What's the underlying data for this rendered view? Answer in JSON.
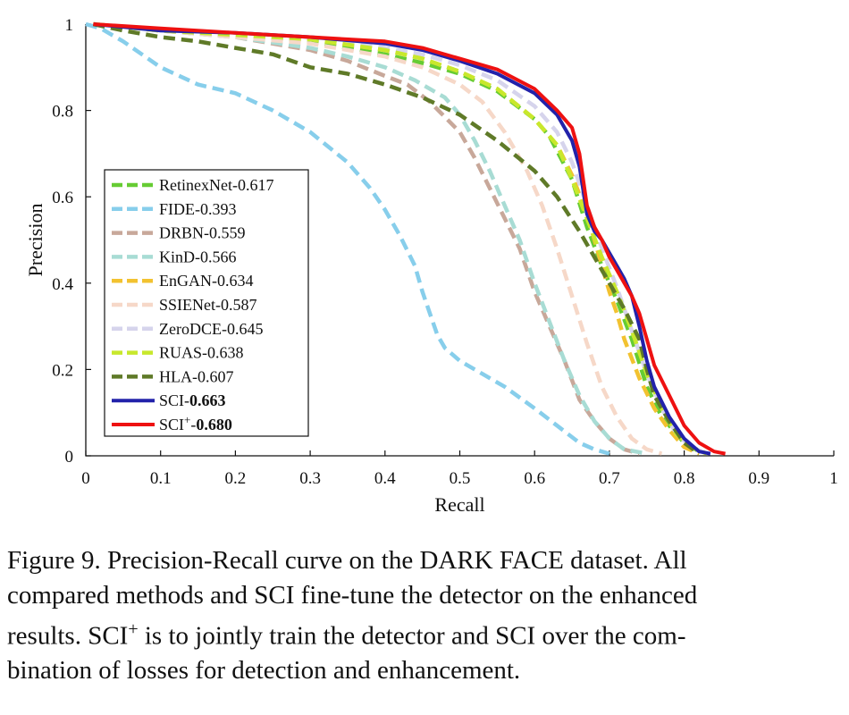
{
  "chart_data": {
    "type": "line",
    "title": "",
    "xlabel": "Recall",
    "ylabel": "Precision",
    "xlim": [
      0,
      1
    ],
    "ylim": [
      0,
      1
    ],
    "x_ticks": [
      0,
      0.1,
      0.2,
      0.3,
      0.4,
      0.5,
      0.6,
      0.7,
      0.8,
      0.9,
      1
    ],
    "x_tick_labels": [
      "0",
      "0.1",
      "0.2",
      "0.3",
      "0.4",
      "0.5",
      "0.6",
      "0.7",
      "0.8",
      "0.9",
      "1"
    ],
    "y_ticks": [
      0,
      0.2,
      0.4,
      0.6,
      0.8,
      1
    ],
    "y_tick_labels": [
      "0",
      "0.2",
      "0.4",
      "0.6",
      "0.8",
      "1"
    ],
    "grid": false,
    "legend_position": "center-left",
    "series": [
      {
        "name": "RetinexNet",
        "score": "0.617",
        "color": "#66cc33",
        "style": "dashed",
        "x": [
          0.01,
          0.1,
          0.2,
          0.3,
          0.4,
          0.45,
          0.5,
          0.55,
          0.6,
          0.62,
          0.65,
          0.67,
          0.69,
          0.71,
          0.73,
          0.75,
          0.77,
          0.8,
          0.82
        ],
        "y": [
          1.0,
          0.985,
          0.975,
          0.96,
          0.93,
          0.91,
          0.885,
          0.845,
          0.78,
          0.74,
          0.64,
          0.53,
          0.44,
          0.36,
          0.27,
          0.16,
          0.09,
          0.03,
          0.01
        ]
      },
      {
        "name": "FIDE",
        "score": "0.393",
        "color": "#87ceeb",
        "style": "dashed",
        "x": [
          0.0,
          0.02,
          0.05,
          0.1,
          0.15,
          0.2,
          0.25,
          0.3,
          0.35,
          0.38,
          0.4,
          0.42,
          0.44,
          0.45,
          0.46,
          0.47,
          0.48,
          0.5,
          0.53,
          0.56,
          0.6,
          0.63,
          0.66,
          0.68,
          0.7
        ],
        "y": [
          1.0,
          0.99,
          0.96,
          0.9,
          0.86,
          0.84,
          0.8,
          0.75,
          0.68,
          0.62,
          0.57,
          0.51,
          0.44,
          0.38,
          0.33,
          0.28,
          0.25,
          0.22,
          0.19,
          0.16,
          0.11,
          0.07,
          0.03,
          0.015,
          0.005
        ]
      },
      {
        "name": "DRBN",
        "score": "0.559",
        "color": "#c8a89a",
        "style": "dashed",
        "x": [
          0.01,
          0.1,
          0.2,
          0.3,
          0.35,
          0.4,
          0.43,
          0.46,
          0.5,
          0.52,
          0.54,
          0.56,
          0.58,
          0.6,
          0.62,
          0.64,
          0.66,
          0.68,
          0.7,
          0.72,
          0.74
        ],
        "y": [
          1.0,
          0.985,
          0.97,
          0.94,
          0.915,
          0.88,
          0.86,
          0.82,
          0.75,
          0.69,
          0.62,
          0.55,
          0.48,
          0.38,
          0.3,
          0.22,
          0.13,
          0.08,
          0.04,
          0.015,
          0.005
        ]
      },
      {
        "name": "KinD",
        "score": "0.566",
        "color": "#a8dcd4",
        "style": "dashed",
        "x": [
          0.01,
          0.1,
          0.2,
          0.3,
          0.35,
          0.4,
          0.44,
          0.48,
          0.5,
          0.52,
          0.54,
          0.56,
          0.58,
          0.6,
          0.62,
          0.64,
          0.66,
          0.68,
          0.7,
          0.72,
          0.75
        ],
        "y": [
          1.0,
          0.985,
          0.97,
          0.945,
          0.925,
          0.9,
          0.87,
          0.83,
          0.79,
          0.73,
          0.66,
          0.58,
          0.5,
          0.4,
          0.31,
          0.22,
          0.14,
          0.08,
          0.04,
          0.015,
          0.005
        ]
      },
      {
        "name": "EnGAN",
        "score": "0.634",
        "color": "#f2c230",
        "style": "dashed",
        "x": [
          0.01,
          0.1,
          0.2,
          0.3,
          0.4,
          0.45,
          0.5,
          0.55,
          0.6,
          0.63,
          0.65,
          0.67,
          0.68,
          0.69,
          0.7,
          0.71,
          0.72,
          0.74,
          0.76,
          0.78,
          0.8,
          0.82
        ],
        "y": [
          1.0,
          0.985,
          0.975,
          0.965,
          0.94,
          0.92,
          0.89,
          0.85,
          0.78,
          0.72,
          0.65,
          0.56,
          0.5,
          0.44,
          0.38,
          0.33,
          0.27,
          0.18,
          0.11,
          0.06,
          0.02,
          0.005
        ]
      },
      {
        "name": "SSIENet",
        "score": "0.587",
        "color": "#f6d8c8",
        "style": "dashed",
        "x": [
          0.01,
          0.1,
          0.2,
          0.3,
          0.4,
          0.45,
          0.5,
          0.53,
          0.56,
          0.59,
          0.61,
          0.63,
          0.65,
          0.67,
          0.69,
          0.71,
          0.73,
          0.75,
          0.77
        ],
        "y": [
          1.0,
          0.985,
          0.97,
          0.955,
          0.925,
          0.9,
          0.86,
          0.82,
          0.75,
          0.66,
          0.58,
          0.48,
          0.37,
          0.26,
          0.16,
          0.09,
          0.04,
          0.015,
          0.005
        ]
      },
      {
        "name": "ZeroDCE",
        "score": "0.645",
        "color": "#d6d4ec",
        "style": "dashed",
        "x": [
          0.01,
          0.1,
          0.2,
          0.3,
          0.4,
          0.45,
          0.5,
          0.55,
          0.6,
          0.63,
          0.65,
          0.67,
          0.69,
          0.71,
          0.73,
          0.75,
          0.77,
          0.79,
          0.81,
          0.83
        ],
        "y": [
          1.0,
          0.985,
          0.975,
          0.965,
          0.945,
          0.93,
          0.905,
          0.87,
          0.81,
          0.75,
          0.68,
          0.58,
          0.48,
          0.39,
          0.29,
          0.19,
          0.11,
          0.05,
          0.02,
          0.005
        ]
      },
      {
        "name": "RUAS",
        "score": "0.638",
        "color": "#c8e82c",
        "style": "dashed",
        "x": [
          0.01,
          0.1,
          0.2,
          0.3,
          0.4,
          0.45,
          0.5,
          0.55,
          0.6,
          0.63,
          0.65,
          0.67,
          0.69,
          0.71,
          0.73,
          0.75,
          0.77,
          0.79,
          0.81,
          0.83
        ],
        "y": [
          1.0,
          0.985,
          0.975,
          0.965,
          0.94,
          0.92,
          0.89,
          0.85,
          0.78,
          0.72,
          0.64,
          0.55,
          0.46,
          0.38,
          0.29,
          0.19,
          0.11,
          0.05,
          0.02,
          0.005
        ]
      },
      {
        "name": "HLA",
        "score": "0.607",
        "color": "#5f7a28",
        "style": "dashed",
        "x": [
          0.01,
          0.05,
          0.1,
          0.15,
          0.2,
          0.25,
          0.3,
          0.35,
          0.4,
          0.45,
          0.5,
          0.55,
          0.6,
          0.63,
          0.66,
          0.68,
          0.7,
          0.72,
          0.74,
          0.75,
          0.76,
          0.78,
          0.8,
          0.82
        ],
        "y": [
          1.0,
          0.985,
          0.97,
          0.96,
          0.945,
          0.93,
          0.9,
          0.885,
          0.86,
          0.83,
          0.79,
          0.73,
          0.66,
          0.6,
          0.52,
          0.46,
          0.4,
          0.34,
          0.27,
          0.2,
          0.14,
          0.08,
          0.03,
          0.005
        ]
      },
      {
        "name": "SCI",
        "score": "0.663",
        "color": "#2222aa",
        "style": "solid",
        "bold_score": true,
        "x": [
          0.01,
          0.1,
          0.2,
          0.3,
          0.4,
          0.45,
          0.5,
          0.55,
          0.6,
          0.63,
          0.65,
          0.66,
          0.67,
          0.68,
          0.69,
          0.7,
          0.71,
          0.72,
          0.73,
          0.74,
          0.75,
          0.76,
          0.78,
          0.8,
          0.82,
          0.835
        ],
        "y": [
          1.0,
          0.985,
          0.98,
          0.97,
          0.955,
          0.94,
          0.915,
          0.885,
          0.84,
          0.79,
          0.73,
          0.67,
          0.56,
          0.52,
          0.5,
          0.47,
          0.44,
          0.41,
          0.37,
          0.3,
          0.22,
          0.16,
          0.09,
          0.04,
          0.01,
          0.005
        ]
      },
      {
        "name": "SCI+",
        "score": "0.680",
        "color": "#ee1111",
        "style": "solid",
        "bold_score": true,
        "superscript": "+",
        "x": [
          0.01,
          0.1,
          0.2,
          0.3,
          0.4,
          0.45,
          0.5,
          0.55,
          0.6,
          0.63,
          0.65,
          0.66,
          0.67,
          0.68,
          0.69,
          0.7,
          0.71,
          0.72,
          0.73,
          0.74,
          0.75,
          0.76,
          0.78,
          0.8,
          0.82,
          0.84,
          0.855
        ],
        "y": [
          1.0,
          0.99,
          0.98,
          0.97,
          0.96,
          0.945,
          0.92,
          0.895,
          0.85,
          0.8,
          0.76,
          0.7,
          0.58,
          0.53,
          0.5,
          0.46,
          0.43,
          0.4,
          0.37,
          0.33,
          0.27,
          0.21,
          0.14,
          0.07,
          0.03,
          0.01,
          0.005
        ]
      }
    ]
  },
  "caption": {
    "line1": "Figure 9. Precision-Recall curve on the DARK FACE dataset. All",
    "line2": "compared methods and SCI fine-tune the detector on the enhanced",
    "line3_pre": "results. SCI",
    "line3_sup": "+",
    "line3_post": " is to jointly train the detector and SCI over the com-",
    "line4": "bination of losses for detection and enhancement."
  }
}
